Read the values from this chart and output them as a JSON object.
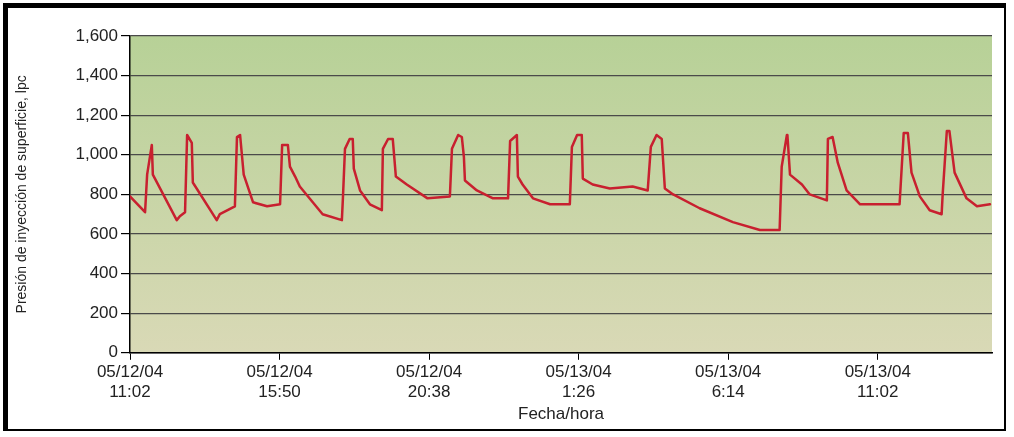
{
  "chart_data": {
    "type": "line",
    "xlabel": "Fecha/hora",
    "ylabel": "Presión de inyección de superficie, lpc",
    "color": "#c8202f",
    "marker": "none",
    "line_style": "solid",
    "grid": "y",
    "x": [
      "--05-12T11:02",
      "--05-12T11:31",
      "--05-12T11:35",
      "--05-12T11:44",
      "--05-12T11:46",
      "--05-12T12:32",
      "--05-12T12:38",
      "--05-12T12:48",
      "--05-12T12:52",
      "--05-12T13:01",
      "--05-12T13:03",
      "--05-12T13:49",
      "--05-12T13:55",
      "--05-12T14:24",
      "--05-12T14:28",
      "--05-12T14:34",
      "--05-12T14:41",
      "--05-12T14:59",
      "--05-12T15:26",
      "--05-12T15:51",
      "--05-12T15:55",
      "--05-12T16:06",
      "--05-12T16:10",
      "--05-12T16:20",
      "--05-12T16:29",
      "--05-12T17:13",
      "--05-12T17:50",
      "--05-12T17:52",
      "--05-12T17:56",
      "--05-12T18:05",
      "--05-12T18:11",
      "--05-12T18:13",
      "--05-12T18:25",
      "--05-12T18:44",
      "--05-12T19:07",
      "--05-12T19:09",
      "--05-12T19:19",
      "--05-12T19:28",
      "--05-12T19:34",
      "--05-12T19:55",
      "--05-12T20:35",
      "--05-12T21:18",
      "--05-12T21:22",
      "--05-12T21:34",
      "--05-12T21:41",
      "--05-12T21:45",
      "--05-12T21:47",
      "--05-12T22:10",
      "--05-12T22:41",
      "--05-12T23:10",
      "--05-12T23:14",
      "--05-12T23:27",
      "--05-12T23:29",
      "--05-12T23:38",
      "--05-12T23:58",
      "--05-13T00:31",
      "--05-13T01:09",
      "--05-13T01:13",
      "--05-13T01:23",
      "--05-13T01:32",
      "--05-13T01:34",
      "--05-13T01:53",
      "--05-13T02:26",
      "--05-13T03:10",
      "--05-13T03:39",
      "--05-13T03:45",
      "--05-13T03:56",
      "--05-13T04:06",
      "--05-13T04:12",
      "--05-13T04:28",
      "--05-13T05:19",
      "--05-13T06:23",
      "--05-13T07:15",
      "--05-13T07:53",
      "--05-13T07:57",
      "--05-13T08:07",
      "--05-13T08:08",
      "--05-13T08:13",
      "--05-13T08:36",
      "--05-13T08:51",
      "--05-13T09:24",
      "--05-13T09:26",
      "--05-13T09:35",
      "--05-13T09:45",
      "--05-13T10:02",
      "--05-13T10:28",
      "--05-13T11:00",
      "--05-13T11:25",
      "--05-13T11:44",
      "--05-13T11:52",
      "--05-13T12:00",
      "--05-13T12:07",
      "--05-13T12:23",
      "--05-13T12:42",
      "--05-13T13:05",
      "--05-13T13:07",
      "--05-13T13:15",
      "--05-13T13:20",
      "--05-13T13:30",
      "--05-13T13:53",
      "--05-13T14:13",
      "--05-13T14:38"
    ],
    "values": [
      790,
      710,
      900,
      1050,
      900,
      670,
      690,
      710,
      1100,
      1060,
      860,
      670,
      700,
      740,
      1090,
      1100,
      900,
      760,
      740,
      750,
      1050,
      1050,
      940,
      890,
      840,
      700,
      670,
      780,
      1030,
      1080,
      1080,
      930,
      820,
      750,
      720,
      1030,
      1080,
      1080,
      890,
      850,
      780,
      790,
      1030,
      1100,
      1090,
      990,
      870,
      820,
      780,
      780,
      1070,
      1100,
      890,
      850,
      780,
      750,
      750,
      1040,
      1100,
      1100,
      880,
      850,
      830,
      840,
      820,
      1040,
      1100,
      1080,
      830,
      800,
      730,
      660,
      620,
      620,
      940,
      1100,
      1100,
      900,
      850,
      800,
      770,
      1080,
      1090,
      960,
      820,
      750,
      750,
      750,
      750,
      1110,
      1110,
      910,
      790,
      720,
      700,
      800,
      1120,
      1120,
      910,
      780,
      740,
      750
    ],
    "xlim": [
      "--05-12T11:02",
      "--05-13T14:42"
    ],
    "xticks": [
      {
        "value": "--05-12T11:02",
        "label": "05/12/04\n11:02"
      },
      {
        "value": "--05-12T15:50",
        "label": "05/12/04\n15:50"
      },
      {
        "value": "--05-12T20:38",
        "label": "05/12/04\n20:38"
      },
      {
        "value": "--05-13T01:26",
        "label": "05/13/04\n1:26"
      },
      {
        "value": "--05-13T06:14",
        "label": "05/13/04\n6:14"
      },
      {
        "value": "--05-13T11:02",
        "label": "05/13/04\n11:02"
      }
    ],
    "ylim": [
      0,
      1600
    ],
    "yticks": [
      0,
      200,
      400,
      600,
      800,
      {
        "value": 1000,
        "label": "1,000"
      },
      {
        "value": 1200,
        "label": "1,200"
      },
      {
        "value": 1400,
        "label": "1,400"
      },
      {
        "value": 1600,
        "label": "1,600"
      }
    ]
  }
}
